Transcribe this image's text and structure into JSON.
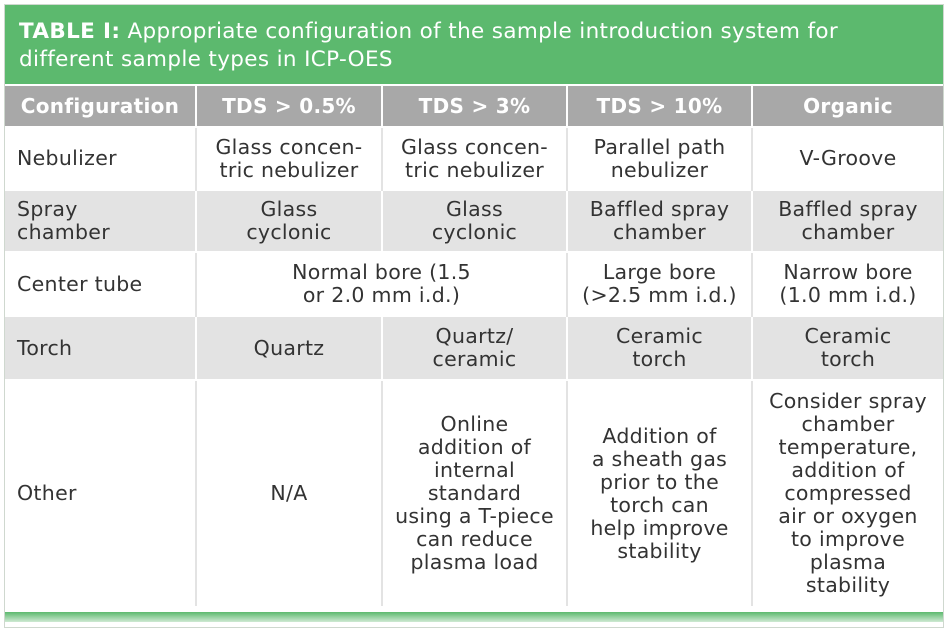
{
  "title": {
    "label": "TABLE I:",
    "text": " Appropriate configuration of the sample introduction system for different sample types in ICP-OES"
  },
  "table": {
    "headers": [
      "Configuration",
      "TDS > 0.5%",
      "TDS > 3%",
      "TDS > 10%",
      "Organic"
    ],
    "rows": {
      "nebulizer": {
        "label": "Nebulizer",
        "tds05": "Glass concen-\ntric nebulizer",
        "tds3": "Glass concen-\ntric nebulizer",
        "tds10": "Parallel path\nnebulizer",
        "organic": "V-Groove"
      },
      "spray_chamber": {
        "label": "Spray\nchamber",
        "tds05": "Glass\ncyclonic",
        "tds3": "Glass\ncyclonic",
        "tds10": "Baffled spray\nchamber",
        "organic": "Baffled spray\nchamber"
      },
      "center_tube": {
        "label": "Center tube",
        "tds05_3": "Normal bore (1.5\nor 2.0 mm i.d.)",
        "tds10": "Large bore\n(>2.5 mm i.d.)",
        "organic": "Narrow bore\n(1.0 mm i.d.)"
      },
      "torch": {
        "label": "Torch",
        "tds05": "Quartz",
        "tds3": "Quartz/\nceramic",
        "tds10": "Ceramic\ntorch",
        "organic": "Ceramic\ntorch"
      },
      "other": {
        "label": "Other",
        "tds05": "N/A",
        "tds3": "Online\naddition of\ninternal\nstandard\nusing a T-piece\ncan reduce\nplasma load",
        "tds10": "Addition of\na sheath gas\nprior to the\ntorch can\nhelp improve\nstability",
        "organic": "Consider spray\nchamber\ntemperature,\naddition of\ncompressed\nair or oxygen\nto improve\nplasma\nstability"
      }
    }
  },
  "colors": {
    "header_green": "#5cb96e",
    "column_header_gray": "#a8a8a8",
    "row_shade": "#e3e3e3"
  }
}
